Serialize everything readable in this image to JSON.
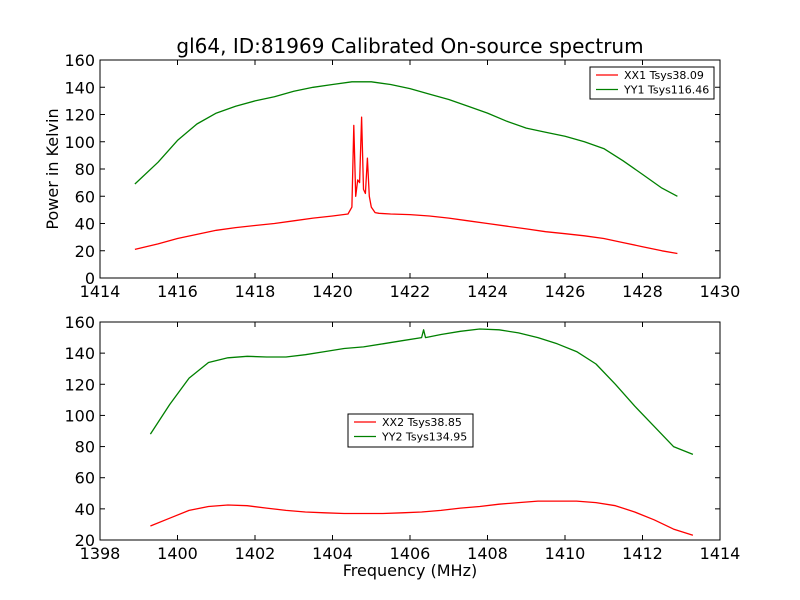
{
  "title": "gl64, ID:81969 Calibrated On-source spectrum",
  "chart_data": [
    {
      "type": "line",
      "title": "gl64, ID:81969 Calibrated On-source spectrum",
      "xlabel": "",
      "ylabel": "Power in Kelvin",
      "xlim": [
        1414,
        1430
      ],
      "ylim": [
        0,
        160
      ],
      "xticks": [
        1414,
        1416,
        1418,
        1420,
        1422,
        1424,
        1426,
        1428,
        1430
      ],
      "yticks": [
        0,
        20,
        40,
        60,
        80,
        100,
        120,
        140,
        160
      ],
      "legend_position": "top-right",
      "grid": false,
      "series": [
        {
          "name": "XX1 Tsys38.09",
          "color": "#ff0000",
          "x": [
            1414.9,
            1415.5,
            1416.0,
            1416.5,
            1417.0,
            1417.5,
            1418.0,
            1418.5,
            1419.0,
            1419.5,
            1420.0,
            1420.4,
            1420.5,
            1420.55,
            1420.6,
            1420.65,
            1420.7,
            1420.75,
            1420.8,
            1420.85,
            1420.9,
            1420.95,
            1421.0,
            1421.05,
            1421.1,
            1421.2,
            1421.5,
            1422.0,
            1422.5,
            1423.0,
            1423.5,
            1424.0,
            1424.5,
            1425.0,
            1425.5,
            1426.0,
            1426.5,
            1427.0,
            1427.5,
            1428.0,
            1428.5,
            1428.9
          ],
          "y": [
            21,
            25,
            29,
            32,
            35,
            37,
            38.5,
            40,
            42,
            44,
            45.5,
            47,
            52,
            112,
            60,
            72,
            70,
            118,
            65,
            62,
            88,
            60,
            52,
            50,
            48,
            47.5,
            47,
            46.5,
            45.5,
            44,
            42,
            40,
            38,
            36,
            34,
            32.5,
            31,
            29,
            26,
            23,
            20,
            18
          ]
        },
        {
          "name": "YY1 Tsys116.46",
          "color": "#008000",
          "x": [
            1414.9,
            1415.5,
            1416.0,
            1416.5,
            1417.0,
            1417.5,
            1418.0,
            1418.5,
            1419.0,
            1419.5,
            1420.0,
            1420.5,
            1421.0,
            1421.5,
            1422.0,
            1422.5,
            1423.0,
            1423.5,
            1424.0,
            1424.5,
            1425.0,
            1425.5,
            1426.0,
            1426.5,
            1427.0,
            1427.5,
            1428.0,
            1428.5,
            1428.9
          ],
          "y": [
            69,
            85,
            101,
            113,
            121,
            126,
            130,
            133,
            137,
            140,
            142,
            144,
            144,
            142,
            139,
            135,
            131,
            126,
            121,
            115,
            110,
            107,
            104,
            100,
            95,
            86,
            76,
            66,
            60
          ]
        }
      ]
    },
    {
      "type": "line",
      "title": "",
      "xlabel": "Frequency (MHz)",
      "ylabel": "",
      "xlim": [
        1398,
        1414
      ],
      "ylim": [
        20,
        160
      ],
      "xticks": [
        1398,
        1400,
        1402,
        1404,
        1406,
        1408,
        1410,
        1412,
        1414
      ],
      "yticks": [
        20,
        40,
        60,
        80,
        100,
        120,
        140,
        160
      ],
      "legend_position": "center",
      "grid": false,
      "series": [
        {
          "name": "XX2 Tsys38.85",
          "color": "#ff0000",
          "x": [
            1399.3,
            1399.8,
            1400.3,
            1400.8,
            1401.3,
            1401.8,
            1402.3,
            1402.8,
            1403.3,
            1403.8,
            1404.3,
            1404.8,
            1405.3,
            1405.8,
            1406.3,
            1406.8,
            1407.3,
            1407.8,
            1408.3,
            1408.8,
            1409.3,
            1409.8,
            1410.3,
            1410.8,
            1411.3,
            1411.8,
            1412.3,
            1412.8,
            1413.3
          ],
          "y": [
            29,
            34,
            39,
            41.5,
            42.5,
            42,
            40.5,
            39,
            38,
            37.5,
            37,
            37,
            37,
            37.5,
            38,
            39,
            40.5,
            41.5,
            43,
            44,
            45,
            45,
            45,
            44,
            42,
            38,
            33,
            27,
            23
          ]
        },
        {
          "name": "YY2 Tsys134.95",
          "color": "#008000",
          "x": [
            1399.3,
            1399.8,
            1400.3,
            1400.8,
            1401.3,
            1401.8,
            1402.3,
            1402.8,
            1403.3,
            1403.8,
            1404.3,
            1404.8,
            1405.3,
            1405.8,
            1406.3,
            1406.35,
            1406.4,
            1406.8,
            1407.3,
            1407.8,
            1408.3,
            1408.8,
            1409.3,
            1409.8,
            1410.3,
            1410.8,
            1411.3,
            1411.8,
            1412.3,
            1412.8,
            1413.3
          ],
          "y": [
            88,
            107,
            124,
            134,
            137,
            138,
            137.5,
            137.5,
            139,
            141,
            143,
            144,
            146,
            148,
            150,
            155,
            150,
            152,
            154,
            155.5,
            155,
            153,
            150,
            146,
            141,
            133,
            120,
            106,
            93,
            80,
            75
          ]
        }
      ]
    }
  ]
}
